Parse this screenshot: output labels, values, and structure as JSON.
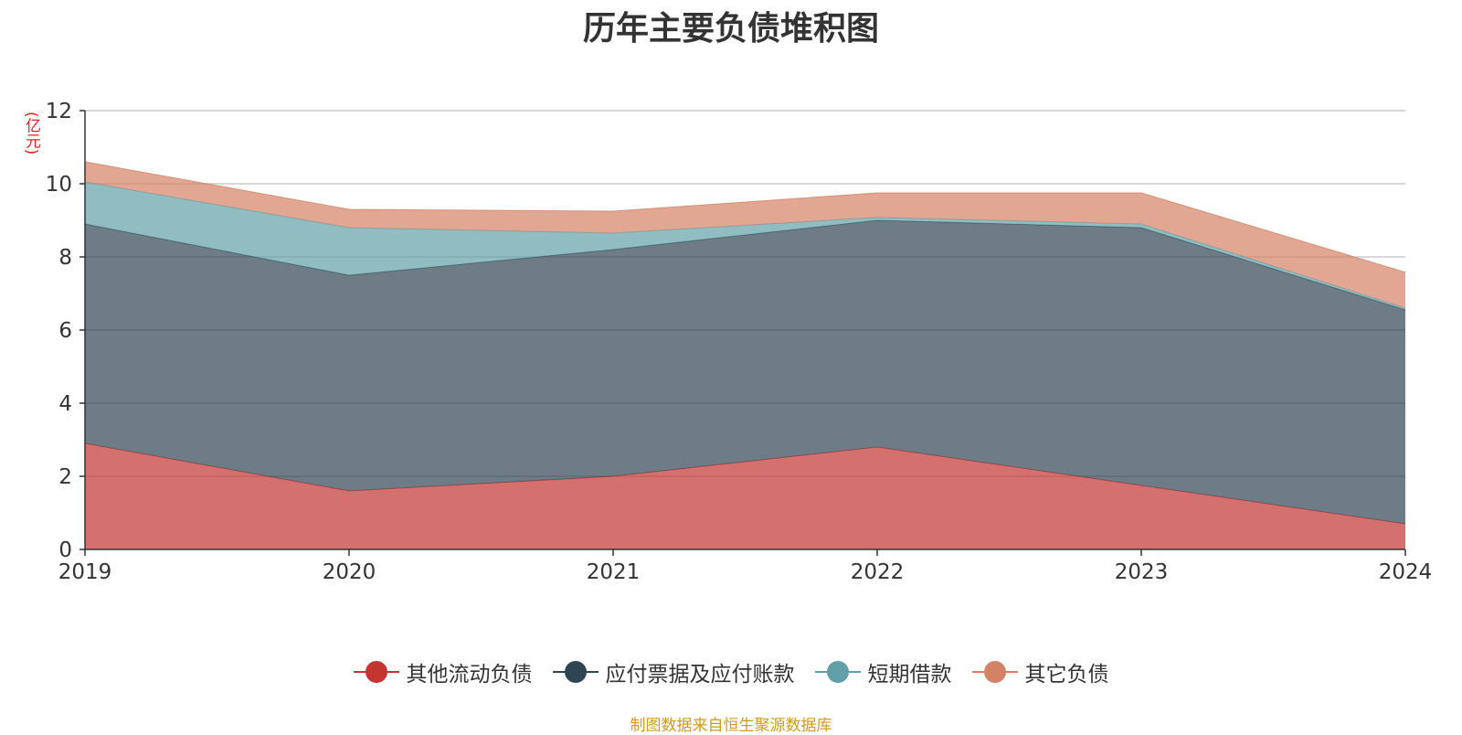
{
  "chart_data": {
    "type": "area",
    "stacked": true,
    "title": "历年主要负债堆积图",
    "ylabel": "(亿元)",
    "xlabel": "",
    "categories": [
      "2019",
      "2020",
      "2021",
      "2022",
      "2023",
      "2024"
    ],
    "ylim": [
      0,
      12
    ],
    "yticks": [
      0,
      2,
      4,
      6,
      8,
      10,
      12
    ],
    "grid": true,
    "legend_position": "bottom",
    "series": [
      {
        "name": "其他流动负债",
        "color": "#c23531",
        "values": [
          2.9,
          1.6,
          2.0,
          2.8,
          1.75,
          0.7
        ]
      },
      {
        "name": "应付票据及应付账款",
        "color": "#2f4554",
        "values": [
          6.0,
          5.9,
          6.2,
          6.2,
          7.05,
          5.85
        ]
      },
      {
        "name": "短期借款",
        "color": "#61a0a8",
        "values": [
          1.15,
          1.3,
          0.45,
          0.08,
          0.1,
          0.05
        ]
      },
      {
        "name": "其它负债",
        "color": "#d48265",
        "values": [
          0.55,
          0.5,
          0.6,
          0.67,
          0.85,
          0.98
        ]
      }
    ]
  },
  "source_note": "制图数据来自恒生聚源数据库"
}
